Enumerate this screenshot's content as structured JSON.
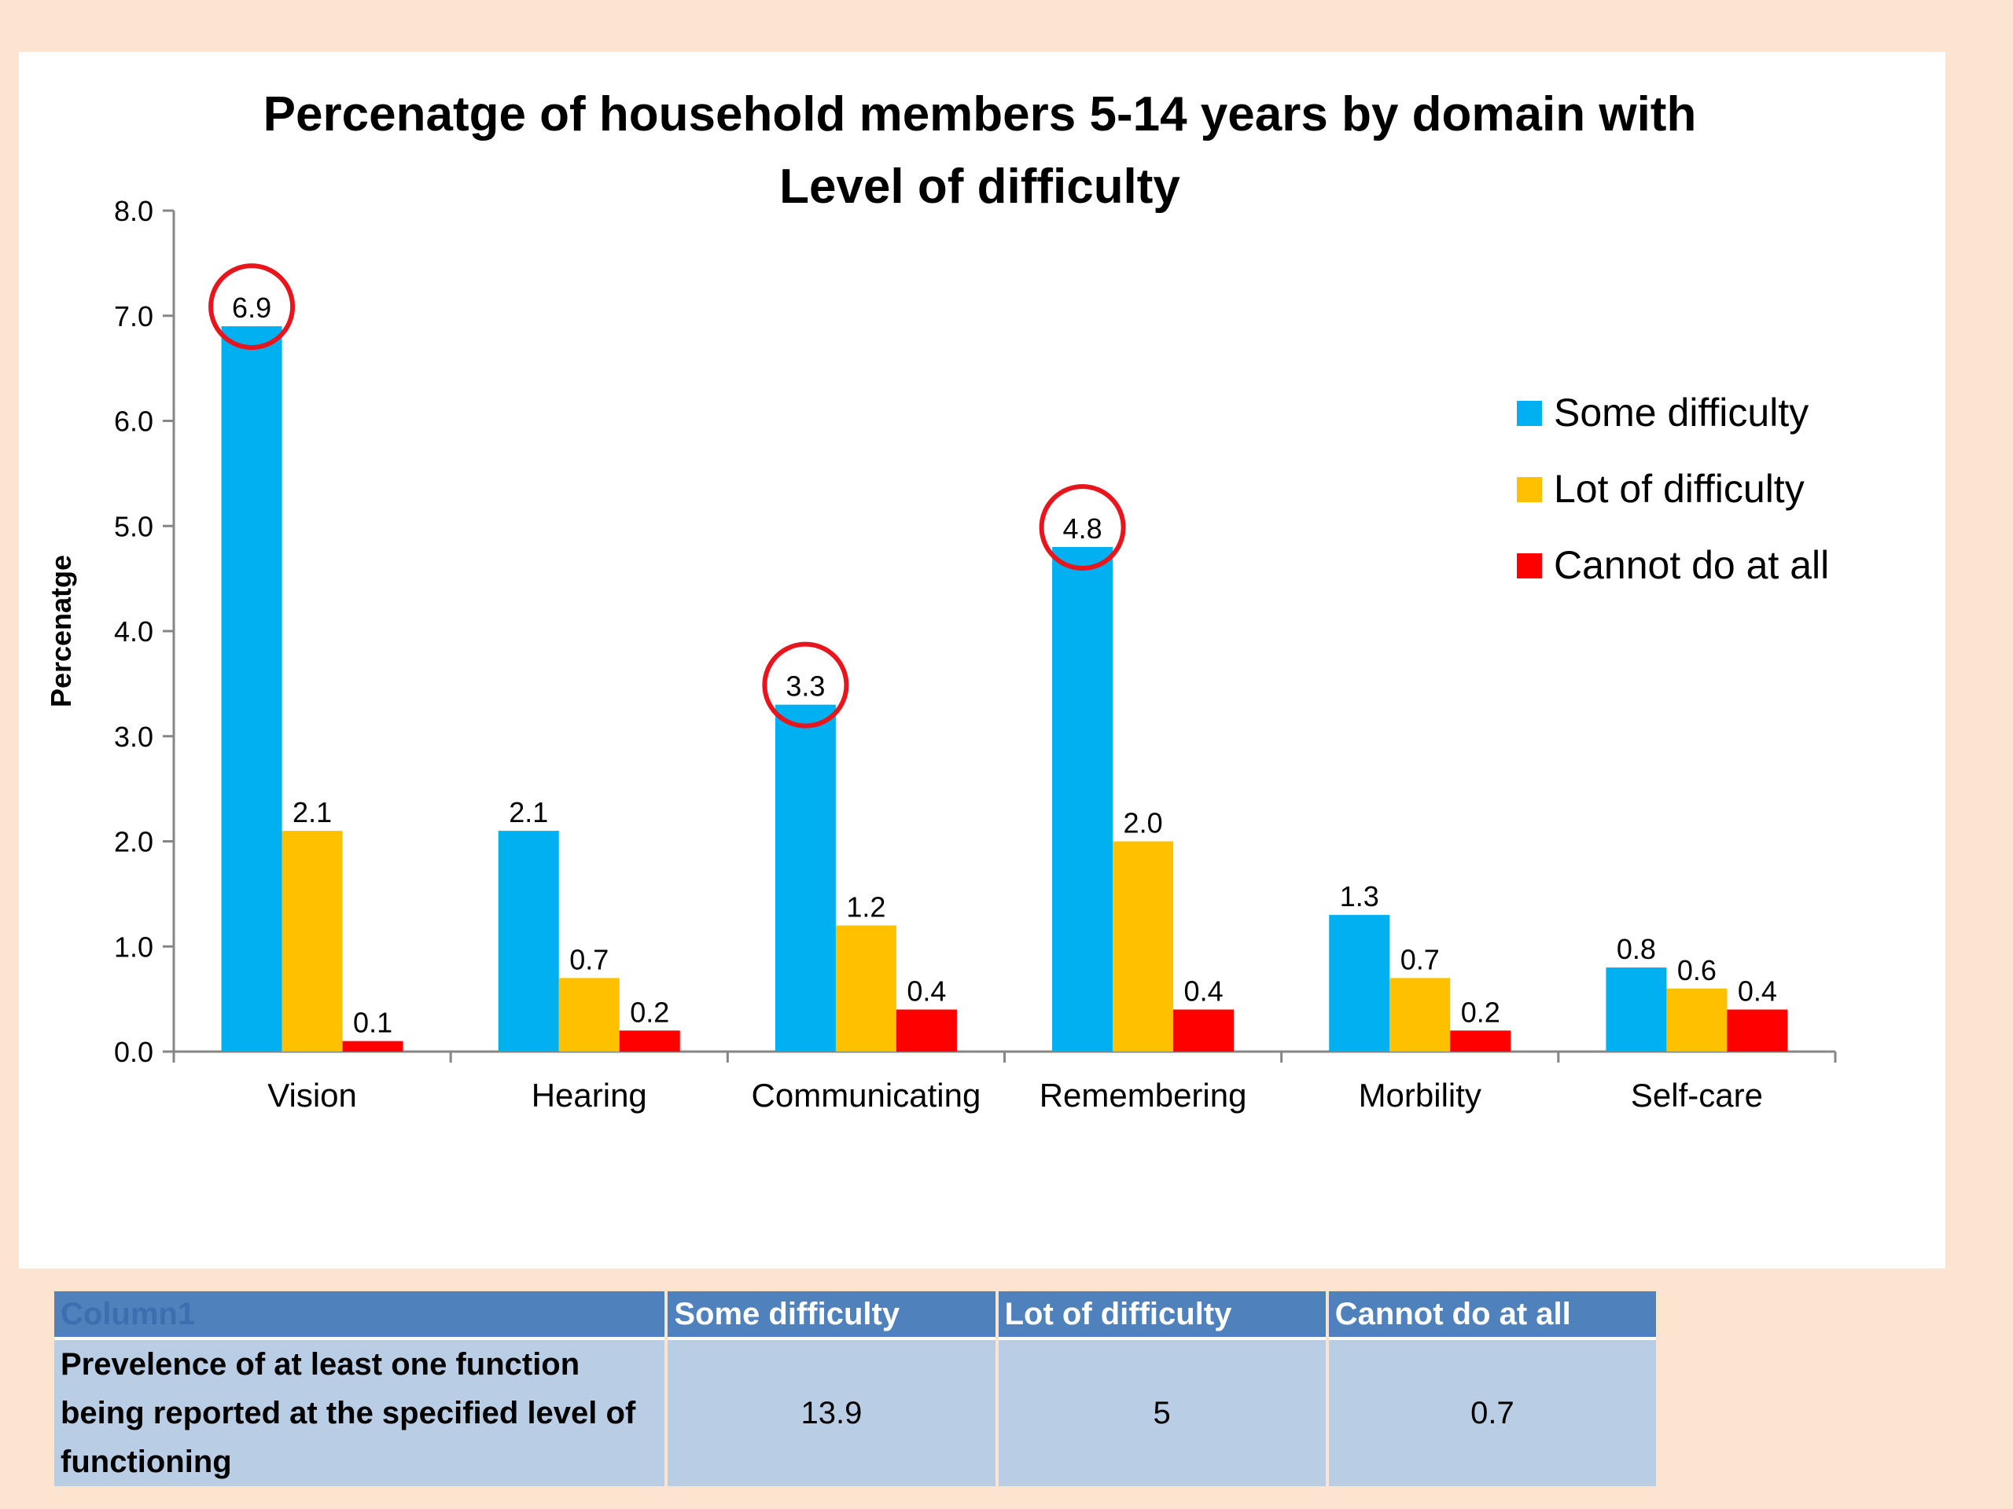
{
  "chart_data": {
    "type": "bar",
    "title": "Percenatge of household members 5-14 years by domain with Level of difficulty",
    "title_lines": [
      "Percenatge of household members 5-14 years by domain with",
      "Level of difficulty"
    ],
    "ylabel": "Percenatge",
    "xlabel": "",
    "ylim": [
      0,
      8
    ],
    "yticks": [
      "0.0",
      "1.0",
      "2.0",
      "3.0",
      "4.0",
      "5.0",
      "6.0",
      "7.0",
      "8.0"
    ],
    "categories": [
      "Vision",
      "Hearing",
      "Communicating",
      "Remembering",
      "Morbility",
      "Self-care"
    ],
    "series": [
      {
        "name": "Some difficulty",
        "color": "#00b0f0",
        "values": [
          6.9,
          2.1,
          3.3,
          4.8,
          1.3,
          0.8
        ],
        "labels": [
          "6.9",
          "2.1",
          "3.3",
          "4.8",
          "1.3",
          "0.8"
        ]
      },
      {
        "name": "Lot of difficulty",
        "color": "#ffc000",
        "values": [
          2.1,
          0.7,
          1.2,
          2.0,
          0.7,
          0.6
        ],
        "labels": [
          "2.1",
          "0.7",
          "1.2",
          "2.0",
          "0.7",
          "0.6"
        ]
      },
      {
        "name": "Cannot do at all",
        "color": "#ff0000",
        "values": [
          0.1,
          0.2,
          0.4,
          0.4,
          0.2,
          0.4
        ],
        "labels": [
          "0.1",
          "0.2",
          "0.4",
          "0.4",
          "0.2",
          "0.4"
        ]
      }
    ],
    "highlighted": [
      {
        "series": 0,
        "category": 0
      },
      {
        "series": 0,
        "category": 2
      },
      {
        "series": 0,
        "category": 3
      }
    ],
    "highlight_color": "#e8161c",
    "legend_position": "right",
    "grid": false
  },
  "table": {
    "headers": [
      "Column1",
      "Some difficulty",
      "Lot of difficulty",
      "Cannot do at all"
    ],
    "row_label": "Prevelence of at least one function being reported at the specified level of functioning",
    "values": [
      "13.9",
      "5",
      "0.7"
    ]
  }
}
